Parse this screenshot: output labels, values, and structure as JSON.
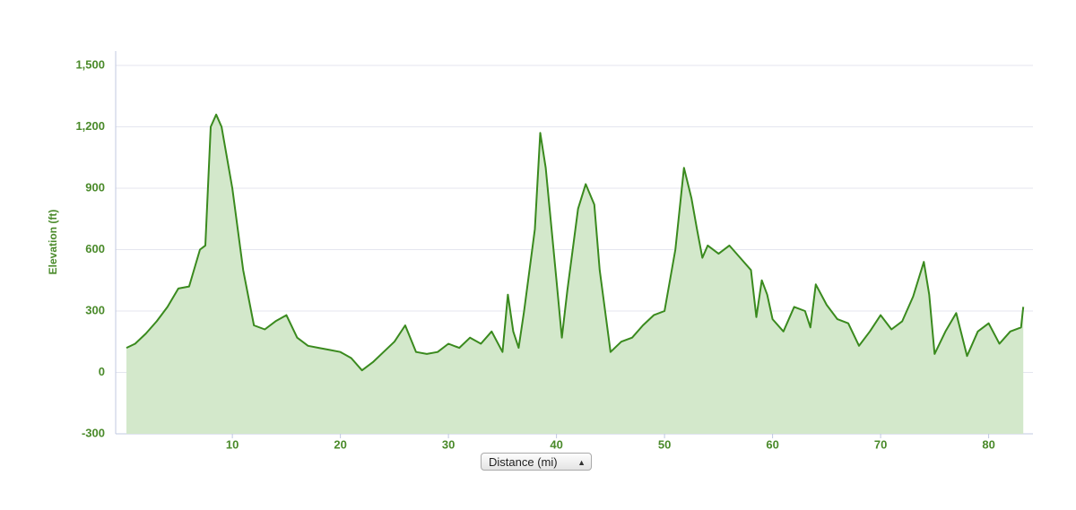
{
  "chart_data": {
    "type": "area",
    "y_label": "Elevation (ft)",
    "x_label": "Distance (mi)",
    "color": "#3a8a1e",
    "fill": "#d3e8cb",
    "grid": true,
    "xlim": [
      -0.8,
      84.1
    ],
    "ylim": [
      -300,
      1570
    ],
    "xticks": [
      10,
      20,
      30,
      40,
      50,
      60,
      70,
      80
    ],
    "yticks": [
      -300,
      0,
      300,
      600,
      900,
      {
        "value": 1200,
        "label": "1,200"
      },
      {
        "value": 1500,
        "label": "1,500"
      }
    ],
    "x": [
      0.2,
      1,
      2,
      3,
      4,
      5,
      6,
      7,
      7.5,
      8,
      8.5,
      9,
      10,
      11,
      12,
      13,
      14,
      15,
      16,
      17,
      18,
      19,
      20,
      21,
      22,
      23,
      24,
      25,
      26,
      27,
      28,
      29,
      30,
      31,
      32,
      33,
      34,
      35,
      35.5,
      36,
      36.5,
      37,
      38,
      38.5,
      39,
      40,
      40.5,
      41,
      42,
      42.7,
      43.5,
      44,
      45,
      46,
      47,
      48,
      49,
      50,
      51,
      51.8,
      52.5,
      53,
      53.5,
      54,
      55,
      56,
      57,
      58,
      58.5,
      59,
      59.5,
      60,
      61,
      62,
      63,
      63.5,
      64,
      65,
      66,
      67,
      68,
      69,
      70,
      71,
      72,
      73,
      74,
      74.5,
      75,
      76,
      77,
      78,
      79,
      80,
      81,
      82,
      83,
      83.2
    ],
    "values": [
      120,
      140,
      190,
      250,
      320,
      410,
      420,
      600,
      620,
      1200,
      1260,
      1200,
      900,
      500,
      230,
      210,
      250,
      280,
      170,
      130,
      120,
      110,
      100,
      70,
      10,
      50,
      100,
      150,
      230,
      100,
      90,
      100,
      140,
      120,
      170,
      140,
      200,
      100,
      380,
      200,
      120,
      300,
      700,
      1170,
      1000,
      450,
      170,
      400,
      800,
      920,
      820,
      500,
      100,
      150,
      170,
      230,
      280,
      300,
      600,
      1000,
      850,
      700,
      560,
      620,
      580,
      620,
      560,
      500,
      270,
      450,
      380,
      260,
      200,
      320,
      300,
      220,
      430,
      330,
      260,
      240,
      130,
      200,
      280,
      210,
      250,
      370,
      540,
      380,
      90,
      200,
      290,
      80,
      200,
      240,
      140,
      200,
      220,
      320
    ]
  }
}
